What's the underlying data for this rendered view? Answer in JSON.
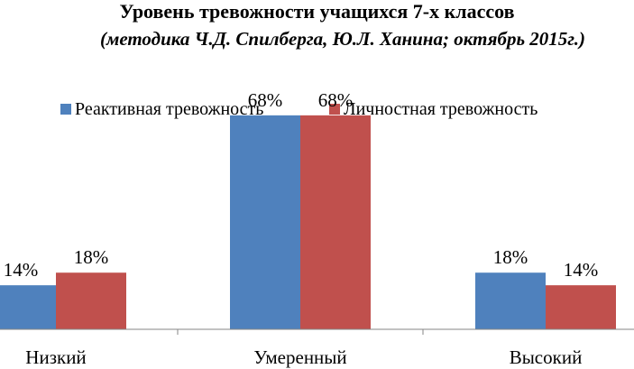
{
  "chart_data": {
    "type": "bar",
    "title": "Уровень тревожности  учащихся 7-х  классов",
    "subtitle": "(методика Ч.Д. Спилберга, Ю.Л. Ханина; октябрь 2015г.)",
    "categories": [
      "Низкий",
      "Умеренный",
      "Высокий"
    ],
    "series": [
      {
        "name": "Реактивная тревожность",
        "values": [
          14,
          68,
          18
        ],
        "labels": [
          "14%",
          "68%",
          "18%"
        ],
        "color": "#4f81bd"
      },
      {
        "name": "Личностная тревожность",
        "values": [
          18,
          68,
          14
        ],
        "labels": [
          "18%",
          "68%",
          "14%"
        ],
        "color": "#c0504d"
      }
    ],
    "ylim": [
      0,
      80
    ],
    "grid": false,
    "legend": "top-center"
  }
}
